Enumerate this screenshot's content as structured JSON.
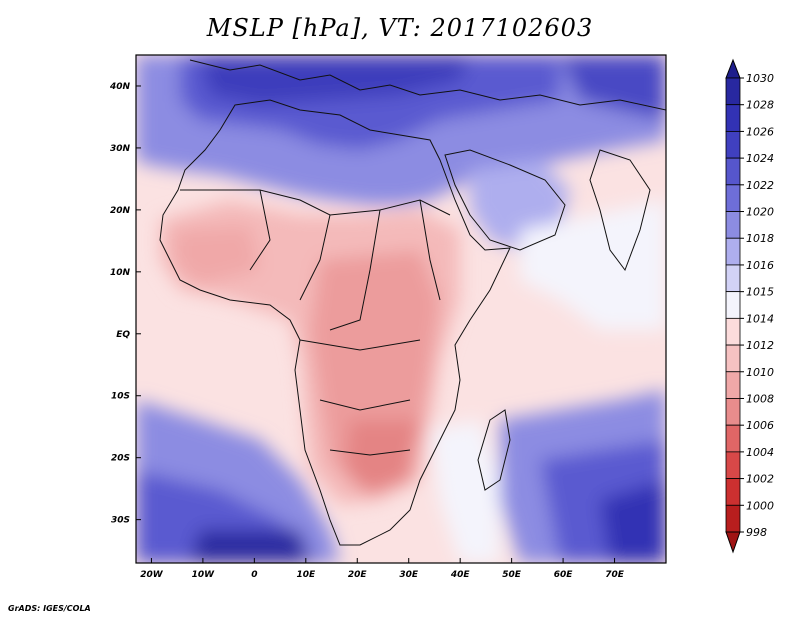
{
  "title": "MSLP [hPa], VT: 2017102603",
  "credit": "GrADS: IGES/COLA",
  "map": {
    "lon_range": [
      -23,
      80
    ],
    "lat_range": [
      -37,
      45
    ],
    "x_tick_labels": [
      "20W",
      "10W",
      "0",
      "10E",
      "20E",
      "30E",
      "40E",
      "50E",
      "60E",
      "70E"
    ],
    "x_tick_values": [
      -20,
      -10,
      0,
      10,
      20,
      30,
      40,
      50,
      60,
      70
    ],
    "y_tick_labels": [
      "40N",
      "30N",
      "20N",
      "10N",
      "EQ",
      "10S",
      "20S",
      "30S"
    ],
    "y_tick_values": [
      40,
      30,
      20,
      10,
      0,
      -10,
      -20,
      -30
    ]
  },
  "colorbar": {
    "levels": [
      "1030",
      "1028",
      "1026",
      "1024",
      "1022",
      "1020",
      "1018",
      "1016",
      "1015",
      "1014",
      "1012",
      "1010",
      "1008",
      "1006",
      "1004",
      "1002",
      "1000",
      "998"
    ],
    "colors": [
      "#1e1e8c",
      "#2828a0",
      "#3232b4",
      "#4040c0",
      "#5656cc",
      "#6e6ed8",
      "#8c8ce2",
      "#aeaeee",
      "#d2d2f6",
      "#f4f4fc",
      "#fcdcdc",
      "#f6c2c2",
      "#f0a8a8",
      "#e88c8c",
      "#e06666",
      "#d84848",
      "#cc3030",
      "#b81e1e",
      "#a01414"
    ]
  }
}
